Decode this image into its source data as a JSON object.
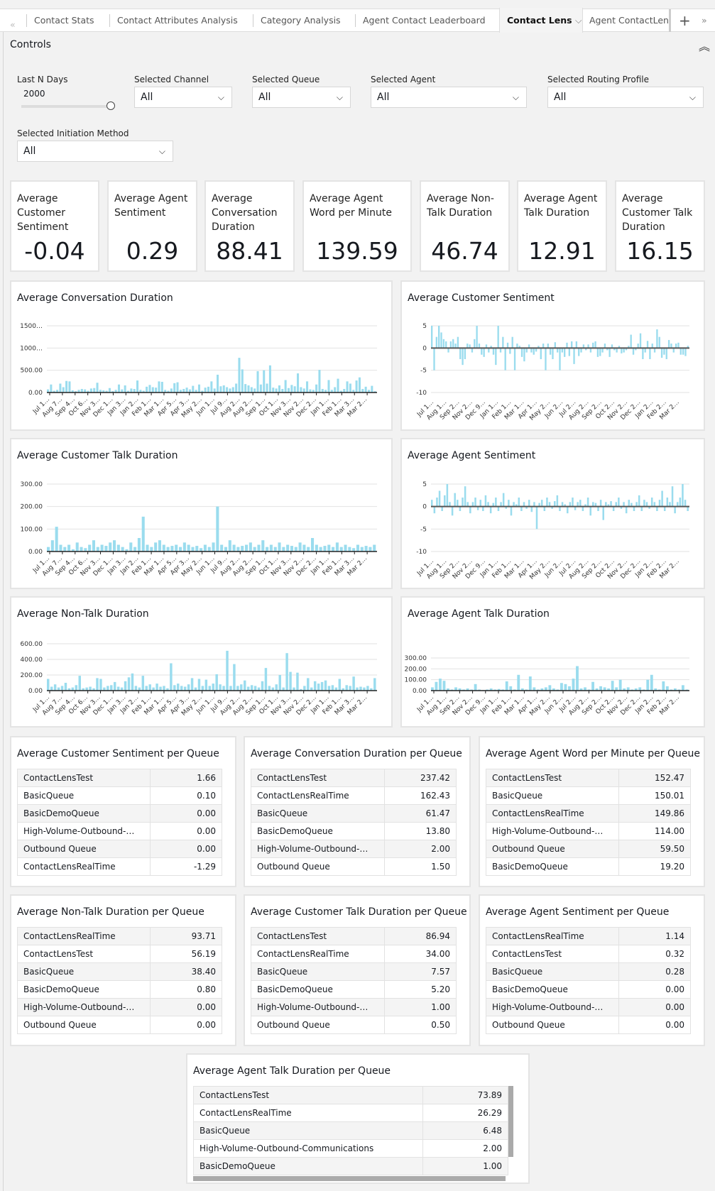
{
  "tabs": {
    "items": [
      "Contact Stats",
      "Contact Attributes Analysis",
      "Category Analysis",
      "Agent Contact Leaderboard",
      "Contact Lens",
      "Agent ContactLens I"
    ],
    "active": "Contact Lens"
  },
  "controls": {
    "title": "Controls",
    "last_n_days": {
      "label": "Last N Days",
      "value": "2000",
      "slider_fraction": 1.0
    },
    "channel": {
      "label": "Selected Channel",
      "value": "All"
    },
    "queue": {
      "label": "Selected Queue",
      "value": "All"
    },
    "agent": {
      "label": "Selected Agent",
      "value": "All"
    },
    "routing_profile": {
      "label": "Selected Routing Profile",
      "value": "All"
    },
    "initiation_method": {
      "label": "Selected Initiation Method",
      "value": "All"
    }
  },
  "kpis": [
    {
      "label": "Average Customer Sentiment",
      "value": "-0.04"
    },
    {
      "label": "Average Agent Sentiment",
      "value": "0.29"
    },
    {
      "label": "Average Conversation Duration",
      "value": "88.41"
    },
    {
      "label": "Average Agent Word per Minute",
      "value": "139.59"
    },
    {
      "label": "Average Non-Talk Duration",
      "value": "46.74"
    },
    {
      "label": "Average Agent Talk Duration",
      "value": "12.91"
    },
    {
      "label": "Average Customer Talk Duration",
      "value": "16.15"
    }
  ],
  "chart_data": [
    {
      "type": "bar",
      "title": "Average Conversation Duration",
      "ylim": [
        0,
        1500
      ],
      "yticks": [
        "0.00",
        "500.00",
        "1000…",
        "1500…"
      ],
      "ytick_values": [
        0,
        500,
        1000,
        1500
      ],
      "grid": true,
      "color": "#9adcee",
      "xticks": [
        "Jul 1…",
        "Aug 7…",
        "Sep 4…",
        "Oct 6…",
        "Nov 3…",
        "Dec 1…",
        "Jan 3…",
        "Jan 2…",
        "Feb 1…",
        "Mar 1…",
        "Apr 5…",
        "Apr 3…",
        "May 2…",
        "Jun 1…",
        "Jul 9…",
        "Aug 2…",
        "Aug 2…",
        "Sep 1…",
        "Oct 1…",
        "Nov 3…",
        "Nov 2…",
        "Dec 2…",
        "Jan 1…",
        "Feb 1…",
        "Mar 3…",
        "Mar 2…"
      ],
      "values": [
        70,
        180,
        40,
        60,
        200,
        120,
        260,
        250,
        50,
        30,
        60,
        80,
        70,
        40,
        90,
        100,
        220,
        60,
        50,
        40,
        100,
        30,
        60,
        180,
        70,
        160,
        40,
        90,
        80,
        270,
        60,
        40,
        130,
        170,
        120,
        110,
        250,
        240,
        60,
        40,
        90,
        210,
        230,
        60,
        80,
        110,
        70,
        150,
        60,
        180,
        40,
        110,
        130,
        250,
        90,
        400,
        140,
        160,
        120,
        90,
        120,
        200,
        780,
        520,
        190,
        160,
        120,
        90,
        480,
        180,
        500,
        200,
        610,
        110,
        90,
        160,
        80,
        280,
        100,
        170,
        140,
        430,
        120,
        90,
        250,
        70,
        60,
        180,
        510,
        80,
        60,
        280,
        60,
        120,
        310,
        40,
        80,
        250,
        200,
        60,
        270,
        340,
        80,
        130,
        60,
        150,
        30
      ]
    },
    {
      "type": "bar",
      "title": "Average Customer Sentiment",
      "ylim": [
        -10,
        5
      ],
      "yticks": [
        "-10",
        "-5",
        "0",
        "5"
      ],
      "ytick_values": [
        -10,
        -5,
        0,
        5
      ],
      "grid": true,
      "color": "#9adcee",
      "xticks": [
        "Jul 1…",
        "Aug 1…",
        "Sep 2…",
        "Nov 2…",
        "Dec 9…",
        "Jan 1…",
        "Feb 1…",
        "Mar 1…",
        "Apr 1…",
        "May 2…",
        "Jun 2…",
        "Jul 2…",
        "Aug 2…",
        "Sep 2…",
        "Oct 2…",
        "Nov 2…",
        "Dec 2…",
        "Jan 2…",
        "Feb 2…",
        "Mar 2…"
      ],
      "values": [
        5,
        -5,
        2.5,
        5,
        3.5,
        2,
        1.5,
        -1,
        1.5,
        2,
        1,
        2.5,
        -2.5,
        -3.8,
        -2.5,
        1,
        0.8,
        -1,
        2,
        5,
        1,
        -1.5,
        -2,
        0.8,
        -1,
        0.5,
        -1.5,
        -3.8,
        5,
        -1,
        2.5,
        -5,
        1.2,
        -1.3,
        2.5,
        -5,
        1,
        0.5,
        -2,
        -3,
        -1,
        0.8,
        -1,
        -1.5,
        -0.8,
        0.5,
        -2.5,
        1,
        -5,
        1,
        -1.5,
        -2.5,
        1.3,
        -1,
        -5,
        -1,
        -2,
        1.2,
        -1.8,
        1.5,
        -3.6,
        1.5,
        -1.8,
        -1,
        0.8,
        -0.5,
        0.8,
        -1,
        1.2,
        1.5,
        -2,
        -1.8,
        -1,
        1,
        -0.5,
        -2,
        0.8,
        -0.5,
        -1,
        0.5,
        -1.2,
        -1,
        -0.5,
        0.5,
        3,
        -1.5,
        -0.5,
        1,
        3.3,
        -2.5,
        -1,
        1.6,
        -2.5,
        1,
        -1,
        4.2,
        2.5,
        -2.2,
        -1.5,
        -2.5,
        1.8,
        1,
        -1,
        1,
        1.2,
        -1.5,
        -1.5,
        -1.8,
        0.5
      ]
    },
    {
      "type": "bar",
      "title": "Average Customer Talk Duration",
      "ylim": [
        0,
        300
      ],
      "yticks": [
        "0.00",
        "100.00",
        "200.00",
        "300.00"
      ],
      "ytick_values": [
        0,
        100,
        200,
        300
      ],
      "grid": true,
      "color": "#9adcee",
      "xticks": [
        "Jul 1…",
        "Aug 7…",
        "Sep 4…",
        "Oct 6…",
        "Nov 3…",
        "Dec 1…",
        "Jan 3…",
        "Jan 2…",
        "Feb 1…",
        "Mar 1…",
        "Apr 5…",
        "Apr 3…",
        "May 2…",
        "Jun 1…",
        "Jul 9…",
        "Aug 2…",
        "Aug 2…",
        "Sep 1…",
        "Oct 1…",
        "Nov 3…",
        "Nov 2…",
        "Dec 2…",
        "Jan 1…",
        "Feb 1…",
        "Mar 3…",
        "Mar 2…"
      ],
      "values": [
        20,
        50,
        110,
        30,
        20,
        30,
        10,
        40,
        20,
        15,
        30,
        50,
        20,
        30,
        25,
        40,
        50,
        30,
        20,
        10,
        40,
        20,
        60,
        155,
        30,
        20,
        40,
        50,
        30,
        20,
        25,
        30,
        20,
        40,
        30,
        20,
        25,
        15,
        30,
        20,
        40,
        200,
        30,
        20,
        50,
        30,
        20,
        25,
        30,
        40,
        20,
        30,
        50,
        20,
        30,
        20,
        40,
        20,
        30,
        25,
        20,
        40,
        30,
        20,
        60,
        30,
        20,
        25,
        30,
        20,
        40,
        20,
        30,
        20,
        15,
        30,
        20,
        25,
        20,
        30
      ]
    },
    {
      "type": "bar",
      "title": "Average Agent Sentiment",
      "ylim": [
        -10,
        5
      ],
      "yticks": [
        "-10",
        "-5",
        "0",
        "5"
      ],
      "ytick_values": [
        -10,
        -5,
        0,
        5
      ],
      "grid": true,
      "color": "#9adcee",
      "xticks": [
        "Jul 1…",
        "Aug 1…",
        "Sep 2…",
        "Nov 2…",
        "Dec 9…",
        "Jan 1…",
        "Feb 1…",
        "Mar 1…",
        "Apr 1…",
        "May 2…",
        "Jun 2…",
        "Jul 2…",
        "Aug 2…",
        "Sep 2…",
        "Oct 2…",
        "Nov 2…",
        "Dec 2…",
        "Jan 2…",
        "Feb 2…",
        "Mar 2…"
      ],
      "values": [
        1.5,
        -1.5,
        2,
        3.5,
        -1,
        2.5,
        5,
        1,
        -2,
        3,
        1.5,
        -1,
        2,
        4.5,
        1,
        -1.5,
        1,
        2,
        -0.8,
        1.5,
        -1,
        2.5,
        1,
        -1.5,
        0.8,
        2,
        -1,
        1,
        3,
        -0.5,
        1.5,
        -2,
        1,
        0.5,
        2,
        -1,
        1,
        -0.5,
        1.5,
        -1.2,
        1,
        -5,
        0.8,
        1.5,
        -1,
        2,
        1,
        -0.5,
        1.2,
        2.5,
        -1,
        1,
        0.5,
        -1.5,
        1,
        2,
        -0.8,
        1,
        1.5,
        -1,
        0.5,
        2,
        -2,
        1,
        0.8,
        -1,
        1.5,
        -3,
        1,
        0.5,
        1.2,
        -1,
        1,
        2,
        -0.5,
        1,
        -1.5,
        1.5,
        0.8,
        -1,
        1,
        2.5,
        -1,
        1.5,
        1,
        -0.5,
        2,
        1,
        -1,
        1.5,
        3.5,
        -1,
        2,
        1,
        4.5,
        -1.5,
        1,
        2,
        5,
        1.5,
        -1
      ]
    },
    {
      "type": "bar",
      "title": "Average Non-Talk Duration",
      "ylim": [
        0,
        600
      ],
      "yticks": [
        "0.00",
        "200.00",
        "400.00",
        "600.00"
      ],
      "ytick_values": [
        0,
        200,
        400,
        600
      ],
      "grid": true,
      "color": "#9adcee",
      "xticks": [
        "Jul 1…",
        "Aug 7…",
        "Sep 4…",
        "Oct 6…",
        "Nov 3…",
        "Dec 1…",
        "Jan 3…",
        "Jan 2…",
        "Feb 1…",
        "Mar 1…",
        "Apr 5…",
        "Apr 3…",
        "May 2…",
        "Jun 1…",
        "Jul 9…",
        "Aug 2…",
        "Aug 2…",
        "Sep 1…",
        "Oct 1…",
        "Nov 3…",
        "Nov 2…",
        "Dec 2…",
        "Jan 1…",
        "Feb 1…",
        "Mar 3…",
        "Mar 2…"
      ],
      "values": [
        150,
        50,
        80,
        40,
        60,
        100,
        30,
        40,
        70,
        190,
        30,
        40,
        50,
        30,
        160,
        150,
        40,
        60,
        70,
        110,
        50,
        40,
        120,
        170,
        220,
        60,
        40,
        190,
        60,
        80,
        40,
        90,
        50,
        60,
        30,
        350,
        70,
        90,
        60,
        50,
        80,
        160,
        40,
        150,
        60,
        140,
        60,
        90,
        210,
        80,
        60,
        510,
        60,
        340,
        60,
        80,
        130,
        50,
        70,
        60,
        40,
        120,
        290,
        60,
        40,
        80,
        200,
        40,
        480,
        240,
        40,
        230,
        20,
        60,
        160,
        40,
        120,
        90,
        110,
        130,
        60,
        70,
        40,
        150,
        30,
        70,
        60,
        180,
        40,
        50,
        40,
        60,
        30,
        160
      ]
    },
    {
      "type": "bar",
      "title": "Average Agent Talk Duration",
      "ylim": [
        0,
        300
      ],
      "yticks": [
        "0.00",
        "100.00",
        "200.00",
        "300.00"
      ],
      "ytick_values": [
        0,
        100,
        200,
        300
      ],
      "grid": true,
      "color": "#9adcee",
      "xticks": [
        "Jul 1…",
        "Aug 1…",
        "Sep 2…",
        "Nov 2…",
        "Dec 9…",
        "Jan 1…",
        "Feb 1…",
        "Mar 1…",
        "Apr 1…",
        "May 2…",
        "Jun 2…",
        "Jul 2…",
        "Aug 2…",
        "Sep 2…",
        "Oct 2…",
        "Nov 2…",
        "Dec 2…",
        "Jan 2…",
        "Feb 2…",
        "Mar 2…"
      ],
      "values": [
        30,
        80,
        110,
        90,
        20,
        10,
        30,
        20,
        10,
        20,
        10,
        60,
        10,
        5,
        10,
        20,
        10,
        15,
        10,
        85,
        40,
        10,
        145,
        20,
        10,
        130,
        30,
        10,
        20,
        30,
        50,
        20,
        10,
        70,
        60,
        40,
        110,
        225,
        20,
        30,
        10,
        80,
        20,
        40,
        30,
        20,
        90,
        30,
        100,
        20,
        30,
        10,
        20,
        30,
        10,
        100,
        145,
        20,
        10,
        85,
        40,
        10,
        20,
        10,
        50,
        10
      ]
    }
  ],
  "tables": [
    {
      "title": "Average Customer Sentiment per Queue",
      "rows": [
        [
          "ContactLensTest",
          "1.66"
        ],
        [
          "BasicQueue",
          "0.10"
        ],
        [
          "BasicDemoQueue",
          "0.00"
        ],
        [
          "High-Volume-Outbound-…",
          "0.00"
        ],
        [
          "Outbound Queue",
          "0.00"
        ],
        [
          "ContactLensRealTime",
          "-1.29"
        ]
      ]
    },
    {
      "title": "Average Conversation Duration per Queue",
      "rows": [
        [
          "ContactLensTest",
          "237.42"
        ],
        [
          "ContactLensRealTime",
          "162.43"
        ],
        [
          "BasicQueue",
          "61.47"
        ],
        [
          "BasicDemoQueue",
          "13.80"
        ],
        [
          "High-Volume-Outbound-…",
          "2.00"
        ],
        [
          "Outbound Queue",
          "1.50"
        ]
      ]
    },
    {
      "title": "Average Agent Word per Minute per Queue",
      "rows": [
        [
          "ContactLensTest",
          "152.47"
        ],
        [
          "BasicQueue",
          "150.01"
        ],
        [
          "ContactLensRealTime",
          "149.86"
        ],
        [
          "High-Volume-Outbound-…",
          "114.00"
        ],
        [
          "Outbound Queue",
          "59.50"
        ],
        [
          "BasicDemoQueue",
          "19.20"
        ]
      ]
    },
    {
      "title": "Average Non-Talk Duration per Queue",
      "rows": [
        [
          "ContactLensRealTime",
          "93.71"
        ],
        [
          "ContactLensTest",
          "56.19"
        ],
        [
          "BasicQueue",
          "38.40"
        ],
        [
          "BasicDemoQueue",
          "0.80"
        ],
        [
          "High-Volume-Outbound-…",
          "0.00"
        ],
        [
          "Outbound Queue",
          "0.00"
        ]
      ]
    },
    {
      "title": "Average Customer Talk Duration per Queue",
      "rows": [
        [
          "ContactLensTest",
          "86.94"
        ],
        [
          "ContactLensRealTime",
          "34.00"
        ],
        [
          "BasicQueue",
          "7.57"
        ],
        [
          "BasicDemoQueue",
          "5.20"
        ],
        [
          "High-Volume-Outbound-…",
          "1.00"
        ],
        [
          "Outbound Queue",
          "0.50"
        ]
      ]
    },
    {
      "title": "Average Agent Sentiment per Queue",
      "rows": [
        [
          "ContactLensRealTime",
          "1.14"
        ],
        [
          "ContactLensTest",
          "0.32"
        ],
        [
          "BasicQueue",
          "0.28"
        ],
        [
          "BasicDemoQueue",
          "0.00"
        ],
        [
          "High-Volume-Outbound-…",
          "0.00"
        ],
        [
          "Outbound Queue",
          "0.00"
        ]
      ]
    },
    {
      "title": "Average Agent Talk Duration per Queue",
      "rows": [
        [
          "ContactLensTest",
          "73.89"
        ],
        [
          "ContactLensRealTime",
          "26.29"
        ],
        [
          "BasicQueue",
          "6.48"
        ],
        [
          "High-Volume-Outbound-Communications",
          "2.00"
        ],
        [
          "BasicDemoQueue",
          "1.00"
        ]
      ]
    }
  ]
}
